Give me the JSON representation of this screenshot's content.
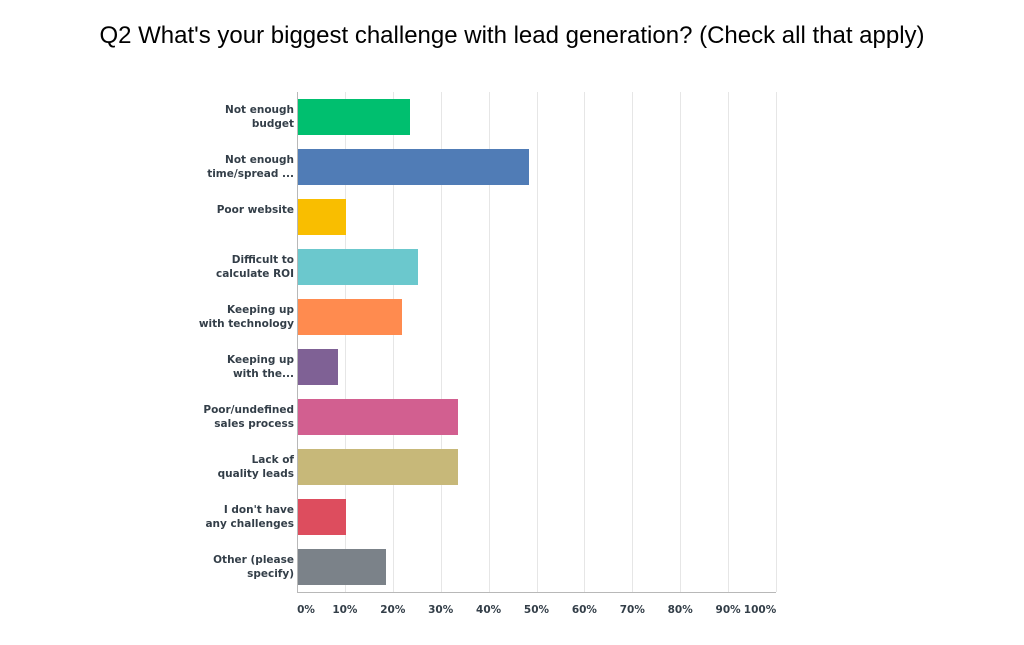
{
  "chart_data": {
    "type": "bar",
    "orientation": "horizontal",
    "title": "Q2 What's your biggest challenge with lead generation? (Check all that apply)",
    "categories": [
      "Not enough\nbudget",
      "Not enough\ntime/spread ...",
      "Poor website",
      "Difficult to\ncalculate ROI",
      "Keeping up\nwith technology",
      "Keeping up\nwith the...",
      "Poor/undefined\nsales process",
      "Lack of\nquality leads",
      "I don't have\nany challenges",
      "Other (please\nspecify)"
    ],
    "values": [
      23.3,
      48.3,
      10.0,
      25.0,
      21.7,
      8.3,
      33.3,
      33.3,
      10.0,
      18.3
    ],
    "colors": [
      "#00bf6f",
      "#507cb6",
      "#f9be00",
      "#6bc8cd",
      "#ff8b4f",
      "#7f6195",
      "#d25f90",
      "#c7b879",
      "#dd4d5e",
      "#7b8289"
    ],
    "xlim": [
      0,
      100
    ],
    "x_ticks": [
      "0%",
      "10%",
      "20%",
      "30%",
      "40%",
      "50%",
      "60%",
      "70%",
      "80%",
      "90%",
      "100%"
    ],
    "xlabel": "",
    "ylabel": "",
    "grid": true,
    "legend": "none"
  }
}
